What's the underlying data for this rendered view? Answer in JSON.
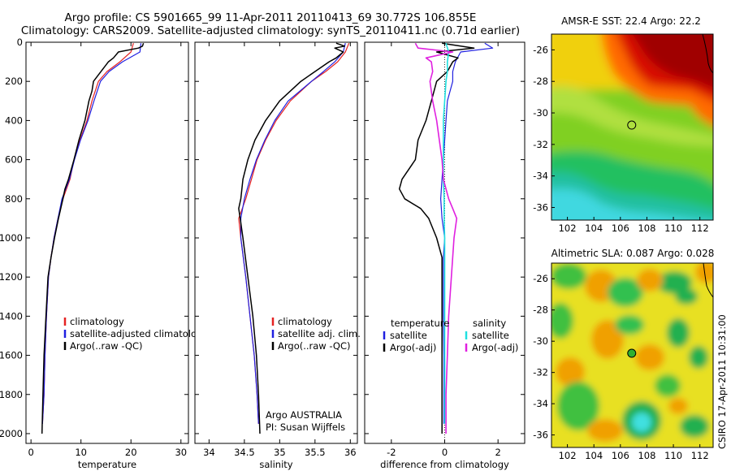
{
  "header": {
    "line1": "Argo profile: CS 5901665_99 11-Apr-2011 20110413_69 30.772S 106.855E",
    "line2": "Climatology: CARS2009. Satellite-adjusted climatology: synTS_20110411.nc (0.71d earlier)"
  },
  "credits": {
    "argo_country": "Argo AUSTRALIA",
    "pi": "PI: Susan Wijffels",
    "csiro_stamp": "CSIRO 17-Apr-2011 10:31:00"
  },
  "colors": {
    "climatology": "#e52222",
    "satellite": "#2020e0",
    "argo": "#000000",
    "satellite_salinity": "#20e0e0",
    "argo_adj_salinity": "#e020e0"
  },
  "chart_data": [
    {
      "type": "line",
      "panel": "temperature",
      "xlabel": "temperature",
      "ylabel": "",
      "xlim": [
        -1,
        31.5
      ],
      "ylim": [
        2050,
        0
      ],
      "xticks": [
        "0",
        "10",
        "20",
        "30"
      ],
      "yticks": [
        "0",
        "200",
        "400",
        "600",
        "800",
        "1000",
        "1200",
        "1400",
        "1600",
        "1800",
        "2000"
      ],
      "legend_labels": [
        "climatology",
        "satellite-adjusted climatology",
        "Argo(..raw -QC)"
      ],
      "series": [
        {
          "name": "climatology",
          "depth": [
            5,
            50,
            100,
            150,
            200,
            300,
            400,
            500,
            600,
            700,
            800,
            900,
            1000,
            1100,
            1200,
            1400,
            1600,
            1800,
            1950
          ],
          "values": [
            20.5,
            20.0,
            17.8,
            15.2,
            13.5,
            12.2,
            11.2,
            9.8,
            8.6,
            7.8,
            6.4,
            5.4,
            4.6,
            4.0,
            3.5,
            3.1,
            2.8,
            2.6,
            2.3
          ]
        },
        {
          "name": "satellite-adjusted climatology",
          "depth": [
            5,
            50,
            100,
            150,
            200,
            300,
            400,
            500,
            600,
            700,
            800,
            900,
            1000,
            1100,
            1200,
            1400,
            1600,
            1800,
            1950
          ],
          "values": [
            22.0,
            21.8,
            18.3,
            15.6,
            13.9,
            12.6,
            11.4,
            9.9,
            8.7,
            7.7,
            6.2,
            5.4,
            4.6,
            4.0,
            3.5,
            3.1,
            2.8,
            2.6,
            2.3
          ]
        },
        {
          "name": "Argo(..raw -QC)",
          "depth": [
            5,
            20,
            30,
            50,
            80,
            100,
            150,
            200,
            250,
            300,
            400,
            500,
            600,
            700,
            750,
            800,
            900,
            1000,
            1100,
            1200,
            1400,
            1600,
            1800,
            2000
          ],
          "values": [
            22.5,
            22.3,
            21.5,
            17.5,
            16.5,
            15.5,
            14.0,
            12.5,
            12.2,
            11.6,
            10.8,
            9.6,
            8.6,
            7.5,
            6.8,
            6.4,
            5.5,
            4.7,
            4.0,
            3.4,
            3.0,
            2.6,
            2.4,
            2.2
          ]
        }
      ]
    },
    {
      "type": "line",
      "panel": "salinity",
      "xlabel": "salinity",
      "ylabel": "",
      "xlim": [
        33.8,
        36.1
      ],
      "ylim": [
        2050,
        0
      ],
      "xticks": [
        "34",
        "34.5",
        "35",
        "35.5",
        "36"
      ],
      "legend_labels": [
        "climatology",
        "satellite adj. clim.",
        "Argo(..raw -QC)"
      ],
      "series": [
        {
          "name": "climatology",
          "depth": [
            5,
            50,
            100,
            150,
            200,
            300,
            400,
            500,
            600,
            700,
            800,
            900,
            1000,
            1200,
            1400,
            1600,
            1800,
            1950
          ],
          "values": [
            35.98,
            35.93,
            35.82,
            35.65,
            35.45,
            35.15,
            34.95,
            34.8,
            34.68,
            34.6,
            34.52,
            34.42,
            34.45,
            34.52,
            34.58,
            34.64,
            34.68,
            34.7
          ]
        },
        {
          "name": "satellite adj. clim.",
          "depth": [
            5,
            50,
            100,
            150,
            200,
            300,
            400,
            500,
            600,
            700,
            800,
            900,
            1000,
            1200,
            1400,
            1600,
            1800,
            1950
          ],
          "values": [
            35.93,
            35.9,
            35.78,
            35.62,
            35.45,
            35.12,
            34.93,
            34.79,
            34.67,
            34.58,
            34.5,
            34.45,
            34.45,
            34.52,
            34.58,
            34.64,
            34.68,
            34.7
          ]
        },
        {
          "name": "Argo(..raw -QC)",
          "depth": [
            5,
            20,
            30,
            50,
            80,
            100,
            150,
            200,
            300,
            400,
            500,
            600,
            700,
            800,
            850,
            900,
            1000,
            1200,
            1400,
            1600,
            1800,
            2000
          ],
          "values": [
            35.8,
            35.92,
            35.78,
            35.9,
            35.8,
            35.7,
            35.5,
            35.3,
            35.0,
            34.8,
            34.65,
            34.55,
            34.48,
            34.45,
            34.42,
            34.44,
            34.48,
            34.55,
            34.62,
            34.67,
            34.7,
            34.72
          ]
        }
      ]
    },
    {
      "type": "line",
      "panel": "difference",
      "xlabel": "difference from climatology",
      "ylabel": "",
      "xlim": [
        -3.0,
        3.0
      ],
      "ylim": [
        2050,
        0
      ],
      "xticks": [
        "-2",
        "0",
        "2"
      ],
      "legend_labels": [
        "temperature",
        "satellite",
        "Argo(-adj)",
        "salinity",
        "satellite",
        "Argo(-adj)"
      ],
      "series": [
        {
          "name": "satellite",
          "quantity": "temperature",
          "depth": [
            5,
            30,
            50,
            100,
            150,
            200,
            300,
            400,
            500,
            600,
            700,
            800,
            900,
            1000,
            1100,
            1200,
            1400,
            1600,
            1800,
            1950
          ],
          "values": [
            1.5,
            1.8,
            0.6,
            0.4,
            0.3,
            0.3,
            0.1,
            0.05,
            0.0,
            -0.05,
            -0.1,
            -0.15,
            -0.1,
            0.0,
            -0.05,
            -0.05,
            -0.05,
            -0.03,
            -0.03,
            -0.03
          ]
        },
        {
          "name": "Argo(-adj)",
          "quantity": "temperature",
          "depth": [
            5,
            30,
            50,
            80,
            100,
            150,
            200,
            300,
            400,
            500,
            600,
            700,
            750,
            800,
            850,
            900,
            1000,
            1100,
            1200,
            1400,
            1600,
            1800,
            2000
          ],
          "values": [
            -0.1,
            1.1,
            -0.3,
            0.5,
            0.3,
            0.1,
            -0.3,
            -0.5,
            -0.7,
            -1.0,
            -1.1,
            -1.6,
            -1.7,
            -1.5,
            -0.9,
            -0.6,
            -0.3,
            -0.1,
            -0.1,
            -0.1,
            -0.1,
            -0.1,
            -0.1
          ]
        },
        {
          "name": "satellite",
          "quantity": "salinity",
          "depth": [
            5,
            50,
            100,
            150,
            200,
            300,
            400,
            500,
            600,
            700,
            800,
            900,
            1000,
            1200,
            1400,
            1600,
            1800,
            1950
          ],
          "values": [
            0.05,
            0.15,
            0.1,
            0.1,
            0.05,
            0.0,
            -0.05,
            -0.05,
            -0.05,
            -0.05,
            -0.02,
            -0.02,
            0.0,
            0.0,
            0.0,
            0.0,
            0.0,
            0.0
          ]
        },
        {
          "name": "Argo(-adj)",
          "quantity": "salinity",
          "depth": [
            5,
            30,
            50,
            80,
            100,
            150,
            200,
            300,
            400,
            500,
            600,
            700,
            800,
            850,
            900,
            1000,
            1200,
            1400,
            1600,
            1800,
            2000
          ],
          "values": [
            -1.1,
            -1.0,
            0.3,
            -0.7,
            -0.5,
            -0.45,
            -0.55,
            -0.45,
            -0.3,
            -0.2,
            -0.1,
            -0.05,
            0.15,
            0.3,
            0.45,
            0.35,
            0.25,
            0.15,
            0.1,
            0.05,
            0.05
          ]
        }
      ]
    },
    {
      "type": "heatmap",
      "panel": "sst_map",
      "title": "AMSR-E SST: 22.4 Argo: 22.2",
      "xlim": [
        100.8,
        113.0
      ],
      "ylim": [
        -36.8,
        -25.0
      ],
      "xticks": [
        "102",
        "104",
        "106",
        "108",
        "110",
        "112"
      ],
      "yticks": [
        "-26",
        "-28",
        "-30",
        "-32",
        "-34",
        "-36"
      ],
      "marker": {
        "lon": 106.855,
        "lat": -30.772
      }
    },
    {
      "type": "heatmap",
      "panel": "sla_map",
      "title": "Altimetric SLA: 0.087 Argo: 0.028",
      "xlim": [
        100.8,
        113.0
      ],
      "ylim": [
        -36.8,
        -25.0
      ],
      "xticks": [
        "102",
        "104",
        "106",
        "108",
        "110",
        "112"
      ],
      "yticks": [
        "-26",
        "-28",
        "-30",
        "-32",
        "-34",
        "-36"
      ],
      "marker": {
        "lon": 106.855,
        "lat": -30.772
      }
    }
  ]
}
